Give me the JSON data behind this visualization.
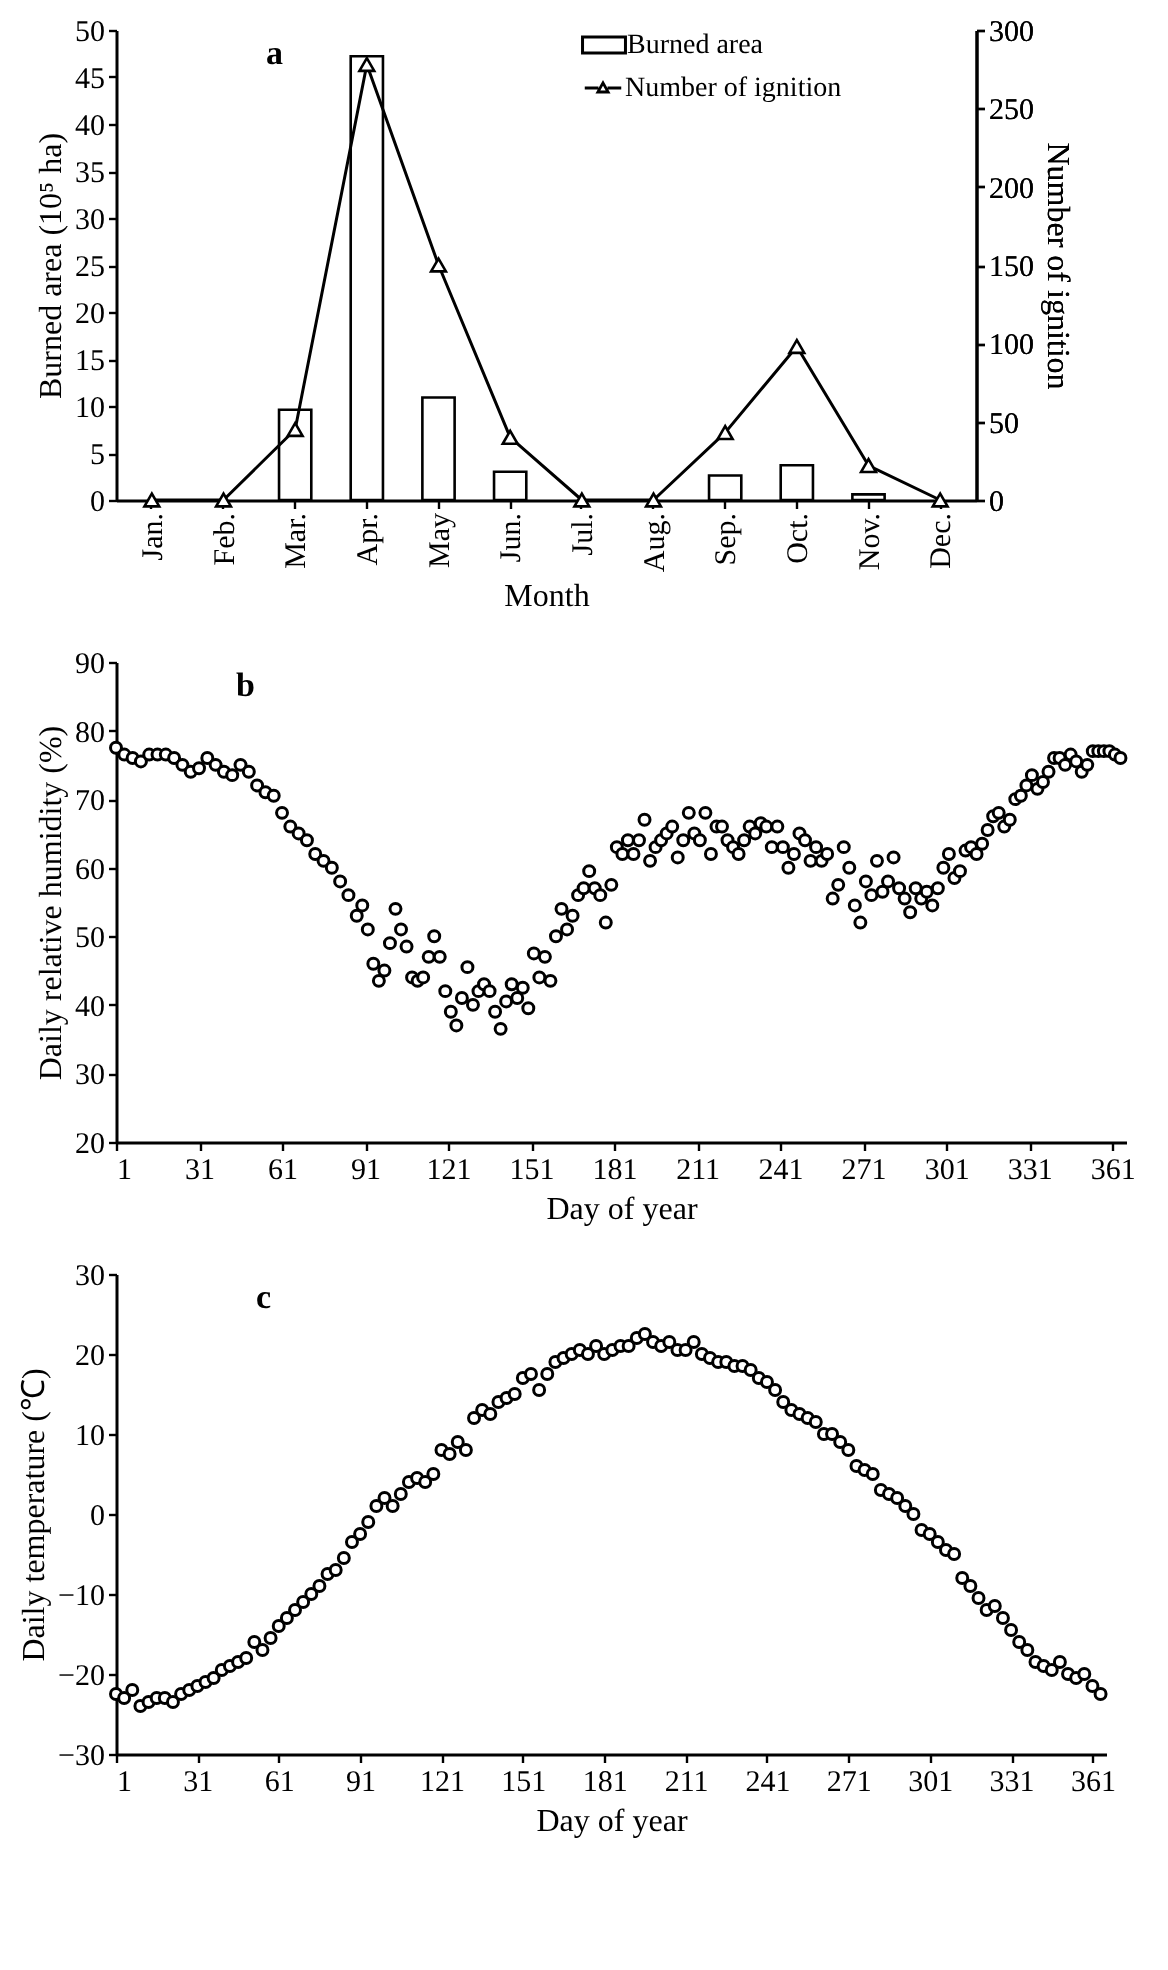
{
  "chart_data": [
    {
      "type": "bar",
      "annotations": [
        "a"
      ],
      "xlabel": "Month",
      "ylabel": "Burned area (10⁵ ha)",
      "y2label": "Number of ignition",
      "categories": [
        "Jan.",
        "Feb.",
        "Mar.",
        "Apr.",
        "May",
        "Jun.",
        "Jul.",
        "Aug.",
        "Sep.",
        "Oct.",
        "Nov.",
        "Dec."
      ],
      "series": [
        {
          "name": "Burned area",
          "color": "#ffffff",
          "values": [
            null,
            null,
            9.6,
            47.2,
            10.9,
            3.0,
            null,
            null,
            2.6,
            3.7,
            0.6,
            null
          ]
        },
        {
          "name": "Number of ignition",
          "type": "line",
          "axis": "y2",
          "color": "#000000",
          "values": [
            0,
            0,
            45,
            278,
            150,
            40,
            0,
            0,
            43,
            98,
            22,
            0
          ]
        }
      ],
      "ylim": [
        0,
        50
      ],
      "yticks": [
        0,
        5,
        10,
        15,
        20,
        25,
        30,
        35,
        40,
        45,
        50
      ],
      "y2lim": [
        0,
        300
      ],
      "y2ticks": [
        0,
        50,
        100,
        150,
        200,
        250,
        300
      ],
      "marker": "triangle",
      "legend": "top right"
    },
    {
      "type": "scatter",
      "annotations": [
        "b"
      ],
      "xlabel": "Day of year",
      "ylabel": "Daily relative humidity (%)",
      "marker": "circle",
      "x": [
        1,
        4,
        7,
        10,
        13,
        16,
        19,
        22,
        25,
        28,
        31,
        34,
        37,
        40,
        43,
        46,
        49,
        52,
        55,
        58,
        61,
        64,
        67,
        70,
        73,
        76,
        79,
        82,
        85,
        88,
        90,
        92,
        94,
        96,
        98,
        100,
        102,
        104,
        106,
        108,
        110,
        112,
        114,
        116,
        118,
        120,
        122,
        124,
        126,
        128,
        130,
        132,
        134,
        136,
        138,
        140,
        142,
        144,
        146,
        148,
        150,
        152,
        154,
        156,
        158,
        160,
        162,
        164,
        166,
        168,
        170,
        172,
        174,
        176,
        178,
        180,
        182,
        184,
        186,
        188,
        190,
        192,
        194,
        196,
        198,
        200,
        202,
        204,
        206,
        208,
        210,
        212,
        214,
        216,
        218,
        220,
        222,
        224,
        226,
        228,
        230,
        232,
        234,
        236,
        238,
        240,
        242,
        244,
        246,
        248,
        250,
        252,
        254,
        256,
        258,
        260,
        262,
        264,
        266,
        268,
        270,
        272,
        274,
        276,
        278,
        280,
        282,
        284,
        286,
        288,
        290,
        292,
        294,
        296,
        298,
        300,
        302,
        304,
        306,
        308,
        310,
        312,
        314,
        316,
        318,
        320,
        322,
        324,
        326,
        328,
        330,
        332,
        334,
        336,
        338,
        340,
        342,
        344,
        346,
        348,
        350,
        352,
        354,
        356,
        358,
        360,
        362,
        364
      ],
      "series": [
        {
          "color": "#000000",
          "values": [
            77.5,
            76.5,
            76,
            75.5,
            76.5,
            76.5,
            76.5,
            76,
            75,
            74,
            74.5,
            76,
            75,
            74,
            73.5,
            75,
            74,
            72,
            71,
            70.5,
            68,
            66,
            65,
            64,
            62,
            61,
            60,
            58,
            56,
            53,
            54.5,
            51,
            46,
            43.5,
            45,
            49,
            54,
            51,
            48.5,
            44,
            43.5,
            44,
            47,
            50,
            47,
            42,
            39,
            37,
            41,
            45.5,
            40,
            42,
            43,
            42,
            39,
            36.5,
            40.5,
            43,
            41,
            42.5,
            39.5,
            47.5,
            44,
            47,
            43.5,
            50,
            54,
            51,
            53,
            56,
            57,
            59.5,
            57,
            56,
            52,
            57.5,
            63,
            62,
            64,
            62,
            64,
            67,
            61,
            63,
            64,
            65,
            66,
            61.5,
            64,
            68,
            65,
            64,
            68,
            62,
            66,
            66,
            64,
            63,
            62,
            64,
            66,
            65,
            66.5,
            66,
            63,
            66,
            63,
            60,
            62,
            65,
            64,
            61,
            63,
            61,
            62,
            55.5,
            57.5,
            63,
            60,
            54.5,
            52,
            58,
            56,
            61,
            56.5,
            58,
            61.5,
            57,
            55.5,
            53.5,
            57,
            55.5,
            56.5,
            54.5,
            57,
            60,
            62,
            58.5,
            59.5,
            62.5,
            63,
            62,
            63.5,
            65.5,
            67.5,
            68,
            66,
            67,
            70,
            70.5,
            72,
            73.5,
            71.5,
            72.5,
            74,
            76,
            76,
            75,
            76.5,
            75.5,
            74,
            75,
            77,
            77,
            77,
            77,
            76.5,
            76
          ]
        }
      ],
      "xlim": [
        1,
        366
      ],
      "xticks": [
        1,
        31,
        61,
        91,
        121,
        151,
        181,
        211,
        241,
        271,
        301,
        331,
        361
      ],
      "ylim": [
        20,
        90
      ],
      "yticks": [
        20,
        30,
        40,
        50,
        60,
        70,
        80,
        90
      ]
    },
    {
      "type": "scatter",
      "annotations": [
        "c"
      ],
      "xlabel": "Day of year",
      "ylabel": "Daily temperature (℃)",
      "marker": "circle",
      "x": [
        1,
        4,
        7,
        10,
        13,
        16,
        19,
        22,
        25,
        28,
        31,
        34,
        37,
        40,
        43,
        46,
        49,
        52,
        55,
        58,
        61,
        64,
        67,
        70,
        73,
        76,
        79,
        82,
        85,
        88,
        91,
        94,
        97,
        100,
        103,
        106,
        109,
        112,
        115,
        118,
        121,
        124,
        127,
        130,
        133,
        136,
        139,
        142,
        145,
        148,
        151,
        154,
        157,
        160,
        163,
        166,
        169,
        172,
        175,
        178,
        181,
        184,
        187,
        190,
        193,
        196,
        199,
        202,
        205,
        208,
        211,
        214,
        217,
        220,
        223,
        226,
        229,
        232,
        235,
        238,
        241,
        244,
        247,
        250,
        253,
        256,
        259,
        262,
        265,
        268,
        271,
        274,
        277,
        280,
        283,
        286,
        289,
        292,
        295,
        298,
        301,
        304,
        307,
        310,
        313,
        316,
        319,
        322,
        325,
        328,
        331,
        334,
        337,
        340,
        343,
        346,
        349,
        352,
        355,
        358,
        361,
        364
      ],
      "series": [
        {
          "color": "#000000",
          "values": [
            -22.5,
            -23,
            -22,
            -24,
            -23.5,
            -23,
            -23,
            -23.5,
            -22.5,
            -22,
            -21.5,
            -21,
            -20.5,
            -19.5,
            -19,
            -18.5,
            -18,
            -16,
            -17,
            -15.5,
            -14,
            -13,
            -12,
            -11,
            -10,
            -9,
            -7.5,
            -7,
            -5.5,
            -3.5,
            -2.5,
            -1,
            1,
            2,
            1,
            2.5,
            4,
            4.5,
            4,
            5,
            8,
            7.5,
            9,
            8,
            12,
            13,
            12.5,
            14,
            14.5,
            15,
            17,
            17.5,
            15.5,
            17.5,
            19,
            19.5,
            20,
            20.5,
            20,
            21,
            20,
            20.5,
            21,
            21,
            22,
            22.5,
            21.5,
            21,
            21.5,
            20.5,
            20.5,
            21.5,
            20,
            19.5,
            19,
            19,
            18.5,
            18.5,
            18,
            17,
            16.5,
            15.5,
            14,
            13,
            12.5,
            12,
            11.5,
            10,
            10,
            9,
            8,
            6,
            5.5,
            5,
            3,
            2.5,
            2,
            1,
            0,
            -2,
            -2.5,
            -3.5,
            -4.5,
            -5,
            -8,
            -9,
            -10.5,
            -12,
            -11.5,
            -13,
            -14.5,
            -16,
            -17,
            -18.5,
            -19,
            -19.5,
            -18.5,
            -20,
            -20.5,
            -20,
            -21.5,
            -22.5
          ]
        }
      ],
      "xlim": [
        1,
        366
      ],
      "xticks": [
        1,
        31,
        61,
        91,
        121,
        151,
        181,
        211,
        241,
        271,
        301,
        331,
        361
      ],
      "ylim": [
        -30,
        30
      ],
      "yticks": [
        -30,
        -20,
        -10,
        0,
        10,
        20,
        30
      ]
    }
  ]
}
